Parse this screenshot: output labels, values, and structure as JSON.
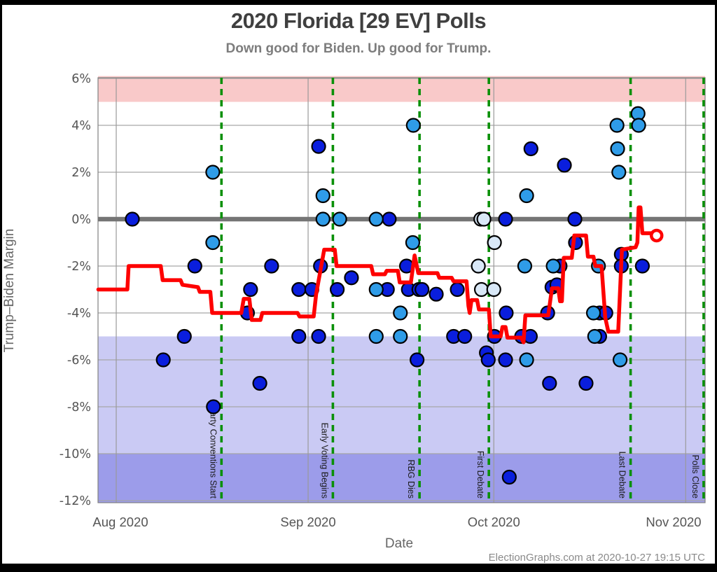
{
  "footer": {
    "credit": "ElectionGraphs.com at 2020-10-27 19:15 UTC"
  },
  "chart_data": {
    "type": "scatter",
    "title": "2020 Florida [29 EV] Polls",
    "subtitle": "Down good for Biden. Up good for Trump.",
    "xlabel": "Date",
    "ylabel": "Trump–Biden Margin",
    "x_axis": {
      "unit": "days since Aug 1 2020",
      "range_days": [
        -2.9,
        95.2
      ],
      "ticks": [
        {
          "label": "Aug 2020",
          "day": 0
        },
        {
          "label": "Sep 2020",
          "day": 31
        },
        {
          "label": "Oct 2020",
          "day": 61
        },
        {
          "label": "Nov 2020",
          "day": 92
        }
      ]
    },
    "y_axis": {
      "range": [
        6.1,
        -12.1
      ],
      "ticks": [
        {
          "label": "6%",
          "value": 6
        },
        {
          "label": "4%",
          "value": 4
        },
        {
          "label": "2%",
          "value": 2
        },
        {
          "label": "0%",
          "value": 0
        },
        {
          "label": "-2%",
          "value": -2
        },
        {
          "label": "-4%",
          "value": -4
        },
        {
          "label": "-6%",
          "value": -6
        },
        {
          "label": "-8%",
          "value": -8
        },
        {
          "label": "-10%",
          "value": -10
        },
        {
          "label": "-12%",
          "value": -12
        }
      ]
    },
    "bands": [
      {
        "name": "strong-trump-zone",
        "from": 6.1,
        "to": 5,
        "color": "#f9c9c9"
      },
      {
        "name": "strong-biden-zone",
        "from": -5,
        "to": -10,
        "color": "#cacaf4"
      },
      {
        "name": "solid-biden-zone",
        "from": -10,
        "to": -12.1,
        "color": "#9c9cea"
      }
    ],
    "zero_line": {
      "value": 0,
      "color": "#757575"
    },
    "events": [
      {
        "label": "Party Conventions Start",
        "day": 17.0
      },
      {
        "label": "Early Voting Begins",
        "day": 35.0
      },
      {
        "label": "RBG Dies",
        "day": 49.0
      },
      {
        "label": "First Debate",
        "day": 60.2
      },
      {
        "label": "Last Debate",
        "day": 83.1
      },
      {
        "label": "Polls Close",
        "day": 94.9
      }
    ],
    "event_line_color": "#0a9008",
    "series": [
      {
        "name": "polls-dark-blue",
        "type": "scatter",
        "color": "#0a1edd",
        "points": [
          [
            2.6,
            0
          ],
          [
            7.6,
            -6
          ],
          [
            11.0,
            -5
          ],
          [
            12.7,
            -2
          ],
          [
            15.7,
            -8
          ],
          [
            21.2,
            -4
          ],
          [
            21.7,
            -3
          ],
          [
            23.2,
            -7
          ],
          [
            25.1,
            -2
          ],
          [
            29.5,
            -3
          ],
          [
            29.5,
            -5
          ],
          [
            31.6,
            -3
          ],
          [
            32.7,
            3.1
          ],
          [
            32.7,
            -5
          ],
          [
            33.0,
            -2
          ],
          [
            35.7,
            -3
          ],
          [
            38.0,
            -2.5
          ],
          [
            43.8,
            -3
          ],
          [
            44.1,
            0
          ],
          [
            46.9,
            -2
          ],
          [
            47.2,
            -3
          ],
          [
            48.6,
            -6
          ],
          [
            48.9,
            -3
          ],
          [
            49.4,
            -3
          ],
          [
            51.7,
            -3.2
          ],
          [
            54.5,
            -5
          ],
          [
            55.1,
            -3
          ],
          [
            56.3,
            -5
          ],
          [
            59.8,
            -5.7
          ],
          [
            60.1,
            -6
          ],
          [
            61.1,
            -5
          ],
          [
            62.9,
            0
          ],
          [
            62.9,
            -6
          ],
          [
            63.0,
            -4
          ],
          [
            63.5,
            -11
          ],
          [
            65.5,
            -5
          ],
          [
            66.9,
            -5
          ],
          [
            67.0,
            3
          ],
          [
            69.7,
            -4
          ],
          [
            70.0,
            -7
          ],
          [
            70.4,
            -2.9
          ],
          [
            71.2,
            -2.8
          ],
          [
            71.7,
            -2
          ],
          [
            72.4,
            2.3
          ],
          [
            74.1,
            0
          ],
          [
            74.2,
            -1
          ],
          [
            75.9,
            -7
          ],
          [
            78.1,
            -4
          ],
          [
            79.1,
            -4
          ],
          [
            78.1,
            -5
          ],
          [
            81.6,
            -1.5
          ],
          [
            81.6,
            -2
          ],
          [
            85.0,
            -2
          ]
        ]
      },
      {
        "name": "polls-light-blue",
        "type": "scatter",
        "color": "#2f9ce8",
        "points": [
          [
            15.6,
            2
          ],
          [
            15.6,
            -1
          ],
          [
            33.4,
            1
          ],
          [
            33.4,
            0
          ],
          [
            36.1,
            0
          ],
          [
            42.0,
            0
          ],
          [
            42.0,
            -3
          ],
          [
            42.0,
            -5
          ],
          [
            45.9,
            -4
          ],
          [
            45.9,
            -5
          ],
          [
            47.9,
            -1
          ],
          [
            48.0,
            4
          ],
          [
            66.0,
            -2
          ],
          [
            66.3,
            1
          ],
          [
            66.3,
            -6
          ],
          [
            70.6,
            -2
          ],
          [
            77.1,
            -4
          ],
          [
            77.3,
            -5
          ],
          [
            77.9,
            -2
          ],
          [
            80.9,
            4
          ],
          [
            81.0,
            3
          ],
          [
            81.2,
            2
          ],
          [
            81.4,
            -6
          ],
          [
            84.3,
            4.5
          ],
          [
            84.4,
            4
          ]
        ]
      },
      {
        "name": "polls-pale-blue",
        "type": "scatter",
        "color": "#d9e8f7",
        "points": [
          [
            58.9,
            0
          ],
          [
            59.4,
            0
          ],
          [
            61.1,
            -1
          ],
          [
            58.5,
            -2
          ],
          [
            59.0,
            -3
          ],
          [
            61.0,
            -3
          ]
        ]
      },
      {
        "name": "poll-average-trend",
        "type": "line",
        "color": "#fe0000",
        "points": [
          [
            -2.9,
            -3.0
          ],
          [
            1.8,
            -3.0
          ],
          [
            2.0,
            -2.0
          ],
          [
            7.2,
            -2.0
          ],
          [
            7.5,
            -2.6
          ],
          [
            10.4,
            -2.6
          ],
          [
            10.7,
            -2.8
          ],
          [
            13.2,
            -2.9
          ],
          [
            13.5,
            -3.1
          ],
          [
            15.2,
            -3.1
          ],
          [
            15.5,
            -4.0
          ],
          [
            20.2,
            -4.0
          ],
          [
            20.6,
            -3.4
          ],
          [
            21.5,
            -3.4
          ],
          [
            21.9,
            -4.3
          ],
          [
            23.3,
            -4.3
          ],
          [
            23.6,
            -4.0
          ],
          [
            29.3,
            -4.0
          ],
          [
            29.6,
            -4.15
          ],
          [
            31.9,
            -4.15
          ],
          [
            32.3,
            -3.2
          ],
          [
            33.6,
            -1.3
          ],
          [
            35.3,
            -1.3
          ],
          [
            35.6,
            -2.0
          ],
          [
            41.2,
            -2.0
          ],
          [
            41.5,
            -2.35
          ],
          [
            43.4,
            -2.35
          ],
          [
            43.7,
            -2.2
          ],
          [
            45.5,
            -2.2
          ],
          [
            45.8,
            -2.7
          ],
          [
            47.6,
            -2.7
          ],
          [
            48.2,
            -1.55
          ],
          [
            48.8,
            -2.3
          ],
          [
            51.9,
            -2.3
          ],
          [
            52.2,
            -2.5
          ],
          [
            54.2,
            -2.5
          ],
          [
            54.5,
            -2.65
          ],
          [
            56.6,
            -2.65
          ],
          [
            56.9,
            -3.7
          ],
          [
            57.1,
            -4.0
          ],
          [
            57.4,
            -3.45
          ],
          [
            58.3,
            -3.45
          ],
          [
            58.6,
            -3.85
          ],
          [
            60.2,
            -3.85
          ],
          [
            60.5,
            -5.0
          ],
          [
            62.1,
            -5.0
          ],
          [
            62.4,
            -4.6
          ],
          [
            62.9,
            -4.6
          ],
          [
            63.2,
            -5.05
          ],
          [
            65.4,
            -5.05
          ],
          [
            65.8,
            -5.25
          ],
          [
            66.1,
            -4.1
          ],
          [
            69.8,
            -4.1
          ],
          [
            70.4,
            -2.95
          ],
          [
            71.4,
            -2.95
          ],
          [
            71.7,
            -3.5
          ],
          [
            72.0,
            -3.5
          ],
          [
            72.3,
            -1.65
          ],
          [
            73.6,
            -1.65
          ],
          [
            74.0,
            -0.7
          ],
          [
            75.9,
            -0.7
          ],
          [
            76.2,
            -1.6
          ],
          [
            77.1,
            -1.6
          ],
          [
            77.4,
            -2.0
          ],
          [
            78.4,
            -2.0
          ],
          [
            79.0,
            -4.2
          ],
          [
            79.5,
            -4.8
          ],
          [
            81.1,
            -4.8
          ],
          [
            81.7,
            -1.3
          ],
          [
            83.9,
            -1.2
          ],
          [
            84.2,
            -1.0
          ],
          [
            84.4,
            0.5
          ],
          [
            84.7,
            0.5
          ],
          [
            85.0,
            -0.6
          ],
          [
            86.8,
            -0.6
          ]
        ],
        "endpoint": [
          87.3,
          -0.7
        ]
      }
    ],
    "grid": {
      "h_color": "#a6a6a6",
      "v_color": "#9a9a9a",
      "border_color": "#808080"
    }
  }
}
